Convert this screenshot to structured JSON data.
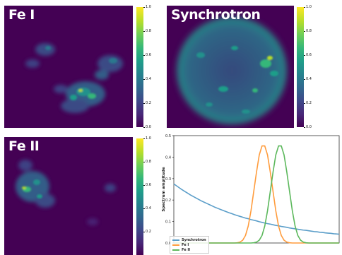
{
  "panels": [
    {
      "title": "Fe I"
    },
    {
      "title": "Synchrotron"
    },
    {
      "title": "Fe II"
    }
  ],
  "colorbar": {
    "ticks": [
      "0.0",
      "0.2",
      "0.4",
      "0.6",
      "0.8",
      "1.0"
    ]
  },
  "colors": {
    "background": "#440154",
    "synchrotron": "#5b9ec9",
    "fe1": "#ff9c3d",
    "fe2": "#5cb85c"
  },
  "chart_data": {
    "type": "line",
    "title": "",
    "xlabel": "",
    "ylabel": "Spectrum amplitude",
    "ylim": [
      0,
      0.5
    ],
    "yticks": [
      "0.0",
      "0.1",
      "0.2",
      "0.3",
      "0.4",
      "0.5"
    ],
    "grid": false,
    "legend_placement": "bottom-left",
    "x": [
      0,
      1,
      2,
      3,
      4,
      5,
      6,
      7,
      8,
      9,
      10,
      11,
      12,
      13,
      14,
      15,
      16,
      17,
      18,
      19,
      20,
      21,
      22,
      23,
      24,
      25,
      26,
      27,
      28,
      29,
      30,
      31,
      32,
      33,
      34,
      35,
      36,
      37,
      38,
      39,
      40,
      41,
      42,
      43,
      44,
      45,
      46,
      47,
      48,
      49,
      50,
      51,
      52,
      53,
      54,
      55,
      56,
      57,
      58,
      59,
      60
    ],
    "series": [
      {
        "name": "Synchrotron",
        "color": "#5b9ec9",
        "values": [
          0.275,
          0.266,
          0.257,
          0.248,
          0.24,
          0.232,
          0.224,
          0.217,
          0.21,
          0.203,
          0.196,
          0.19,
          0.184,
          0.178,
          0.172,
          0.166,
          0.161,
          0.156,
          0.151,
          0.146,
          0.141,
          0.137,
          0.132,
          0.128,
          0.124,
          0.12,
          0.116,
          0.113,
          0.109,
          0.106,
          0.103,
          0.099,
          0.096,
          0.093,
          0.09,
          0.088,
          0.085,
          0.082,
          0.08,
          0.077,
          0.075,
          0.073,
          0.07,
          0.068,
          0.066,
          0.064,
          0.062,
          0.06,
          0.059,
          0.057,
          0.055,
          0.053,
          0.052,
          0.05,
          0.049,
          0.047,
          0.046,
          0.045,
          0.043,
          0.042,
          0.041
        ]
      },
      {
        "name": "Fe I",
        "color": "#ff9c3d",
        "values": [
          0,
          0,
          0,
          0,
          0,
          0,
          0,
          0,
          0,
          0,
          0,
          0,
          0,
          0,
          0,
          0,
          0,
          0,
          0,
          0,
          0,
          0,
          0,
          0.001,
          0.004,
          0.013,
          0.035,
          0.079,
          0.15,
          0.24,
          0.33,
          0.41,
          0.452,
          0.452,
          0.41,
          0.33,
          0.24,
          0.15,
          0.079,
          0.035,
          0.013,
          0.004,
          0.001,
          0,
          0,
          0,
          0,
          0,
          0,
          0,
          0,
          0,
          0,
          0,
          0,
          0,
          0,
          0,
          0,
          0,
          0
        ]
      },
      {
        "name": "Fe II",
        "color": "#5cb85c",
        "values": [
          0,
          0,
          0,
          0,
          0,
          0,
          0,
          0,
          0,
          0,
          0,
          0,
          0,
          0,
          0,
          0,
          0,
          0,
          0,
          0,
          0,
          0,
          0,
          0,
          0,
          0,
          0,
          0,
          0,
          0.001,
          0.004,
          0.013,
          0.035,
          0.079,
          0.15,
          0.24,
          0.33,
          0.41,
          0.452,
          0.452,
          0.41,
          0.33,
          0.24,
          0.15,
          0.079,
          0.035,
          0.013,
          0.004,
          0.001,
          0,
          0,
          0,
          0,
          0,
          0,
          0,
          0,
          0,
          0,
          0,
          0
        ]
      }
    ]
  }
}
